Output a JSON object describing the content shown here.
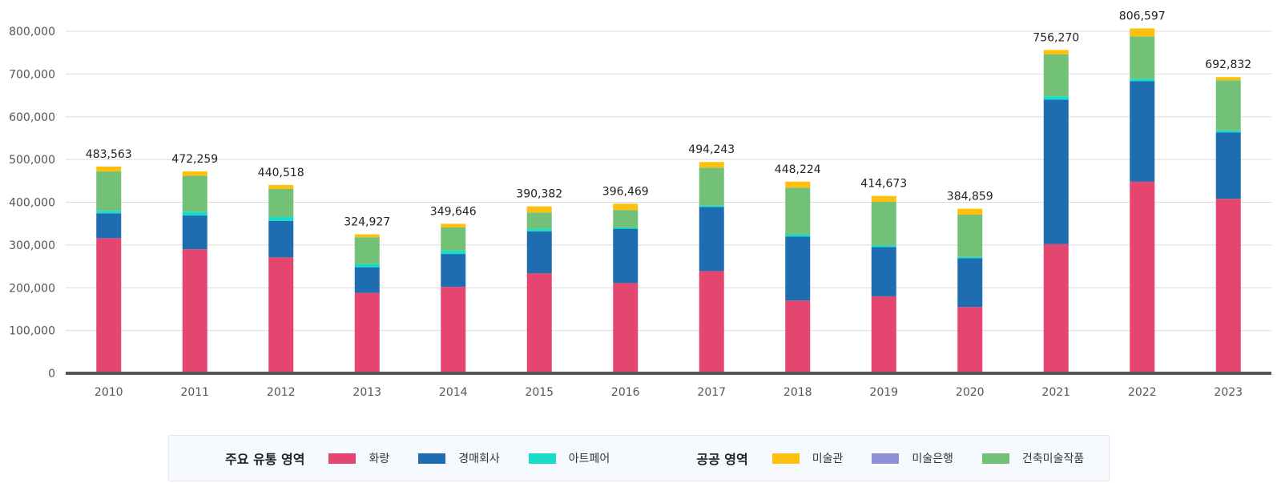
{
  "chart_data": {
    "type": "bar",
    "stacked": true,
    "categories": [
      "2010",
      "2011",
      "2012",
      "2013",
      "2014",
      "2015",
      "2016",
      "2017",
      "2018",
      "2019",
      "2020",
      "2021",
      "2022",
      "2023"
    ],
    "series": [
      {
        "name": "화랑",
        "color": "#e5466f",
        "values": [
          316000,
          290000,
          271000,
          188000,
          202000,
          234000,
          211000,
          239000,
          170000,
          180000,
          155000,
          302000,
          448000,
          408000
        ]
      },
      {
        "name": "경매회사",
        "color": "#1f6db1",
        "values": [
          58000,
          79000,
          85000,
          60000,
          77000,
          98000,
          127000,
          150000,
          150000,
          115000,
          114000,
          338000,
          235000,
          155000
        ]
      },
      {
        "name": "아트페어",
        "color": "#16dcc8",
        "values": [
          6000,
          9000,
          10000,
          8000,
          8000,
          6000,
          3000,
          3000,
          5000,
          4000,
          3000,
          8000,
          6000,
          5000
        ]
      },
      {
        "name": "미술은행",
        "color": "#8f8fd6",
        "values": [
          0,
          0,
          0,
          0,
          0,
          0,
          0,
          0,
          0,
          0,
          0,
          0,
          0,
          0
        ]
      },
      {
        "name": "건축미술작품",
        "color": "#73c077",
        "values": [
          92000,
          84000,
          65000,
          62000,
          54000,
          38000,
          41000,
          89000,
          109000,
          102000,
          99000,
          98000,
          99000,
          117000
        ]
      },
      {
        "name": "미술관",
        "color": "#fdc00f",
        "values": [
          11563,
          10259,
          9518,
          6927,
          8646,
          14382,
          14469,
          13243,
          14224,
          13673,
          13859,
          10270,
          18597,
          7832
        ]
      }
    ],
    "totals": [
      "483,563",
      "472,259",
      "440,518",
      "324,927",
      "349,646",
      "390,382",
      "396,469",
      "494,243",
      "448,224",
      "414,673",
      "384,859",
      "756,270",
      "806,597",
      "692,832"
    ],
    "y_ticks": [
      "0",
      "100,000",
      "200,000",
      "300,000",
      "400,000",
      "500,000",
      "600,000",
      "700,000",
      "800,000"
    ],
    "ylim": [
      0,
      800000
    ],
    "grid": true,
    "title": "",
    "xlabel": "",
    "ylabel": ""
  },
  "legend": {
    "groups": [
      {
        "title": "주요 유통 영역",
        "items": [
          {
            "label": "화랑",
            "color": "#e5466f"
          },
          {
            "label": "경매회사",
            "color": "#1f6db1"
          },
          {
            "label": "아트페어",
            "color": "#16dcc8"
          }
        ]
      },
      {
        "title": "공공 영역",
        "items": [
          {
            "label": "미술관",
            "color": "#fdc00f"
          },
          {
            "label": "미술은행",
            "color": "#8f8fd6"
          },
          {
            "label": "건축미술작품",
            "color": "#73c077"
          }
        ]
      }
    ]
  }
}
